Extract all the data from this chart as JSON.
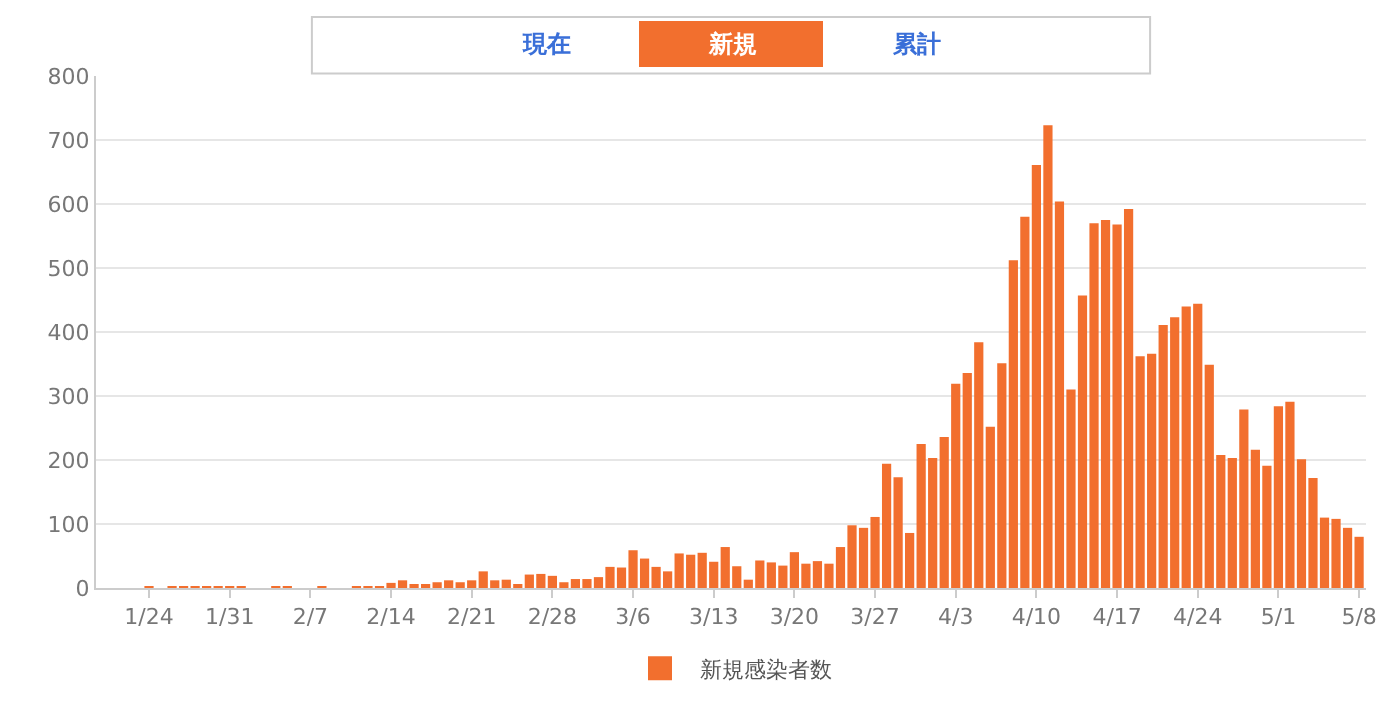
{
  "chart_data": {
    "type": "bar",
    "annotations": [
      "現在",
      "新規",
      "累計"
    ],
    "categories": [
      null,
      null,
      null,
      null,
      "1/24",
      null,
      null,
      null,
      null,
      null,
      null,
      "1/31",
      null,
      null,
      null,
      null,
      null,
      null,
      "2/7",
      null,
      null,
      null,
      null,
      null,
      null,
      "2/14",
      null,
      null,
      null,
      null,
      null,
      null,
      "2/21",
      null,
      null,
      null,
      null,
      null,
      null,
      "2/28",
      null,
      null,
      null,
      null,
      null,
      null,
      "3/6",
      null,
      null,
      null,
      null,
      null,
      null,
      "3/13",
      null,
      null,
      null,
      null,
      null,
      null,
      "3/20",
      null,
      null,
      null,
      null,
      null,
      null,
      "3/27",
      null,
      null,
      null,
      null,
      null,
      null,
      "4/3",
      null,
      null,
      null,
      null,
      null,
      null,
      "4/10",
      null,
      null,
      null,
      null,
      null,
      null,
      "4/17",
      null,
      null,
      null,
      null,
      null,
      null,
      "4/24",
      null,
      null,
      null,
      null,
      null,
      null,
      "5/1",
      null,
      null,
      null,
      null,
      null,
      null,
      "5/8"
    ],
    "series": [
      {
        "name": "新規感染者数",
        "color": "#f26f2e",
        "values": [
          0,
          0,
          0,
          0,
          1,
          0,
          2,
          2,
          2,
          3,
          2,
          2,
          2,
          0,
          0,
          1,
          1,
          0,
          0,
          1,
          0,
          0,
          1,
          1,
          3,
          8,
          12,
          6,
          6,
          9,
          12,
          9,
          12,
          26,
          12,
          13,
          6,
          21,
          22,
          19,
          9,
          14,
          14,
          17,
          33,
          32,
          59,
          46,
          33,
          26,
          54,
          52,
          55,
          41,
          64,
          34,
          13,
          43,
          40,
          35,
          56,
          38,
          42,
          38,
          64,
          98,
          94,
          111,
          194,
          173,
          86,
          225,
          203,
          236,
          319,
          336,
          384,
          252,
          351,
          512,
          580,
          661,
          723,
          604,
          310,
          457,
          570,
          575,
          568,
          592,
          362,
          366,
          411,
          423,
          440,
          444,
          349,
          208,
          203,
          279,
          216,
          191,
          284,
          291,
          201,
          172,
          110,
          108,
          94,
          80
        ]
      }
    ],
    "ylim": [
      0,
      800
    ],
    "yticks": [
      0,
      100,
      200,
      300,
      400,
      500,
      600,
      700,
      800
    ],
    "grid": "y",
    "legend": "bottom"
  }
}
